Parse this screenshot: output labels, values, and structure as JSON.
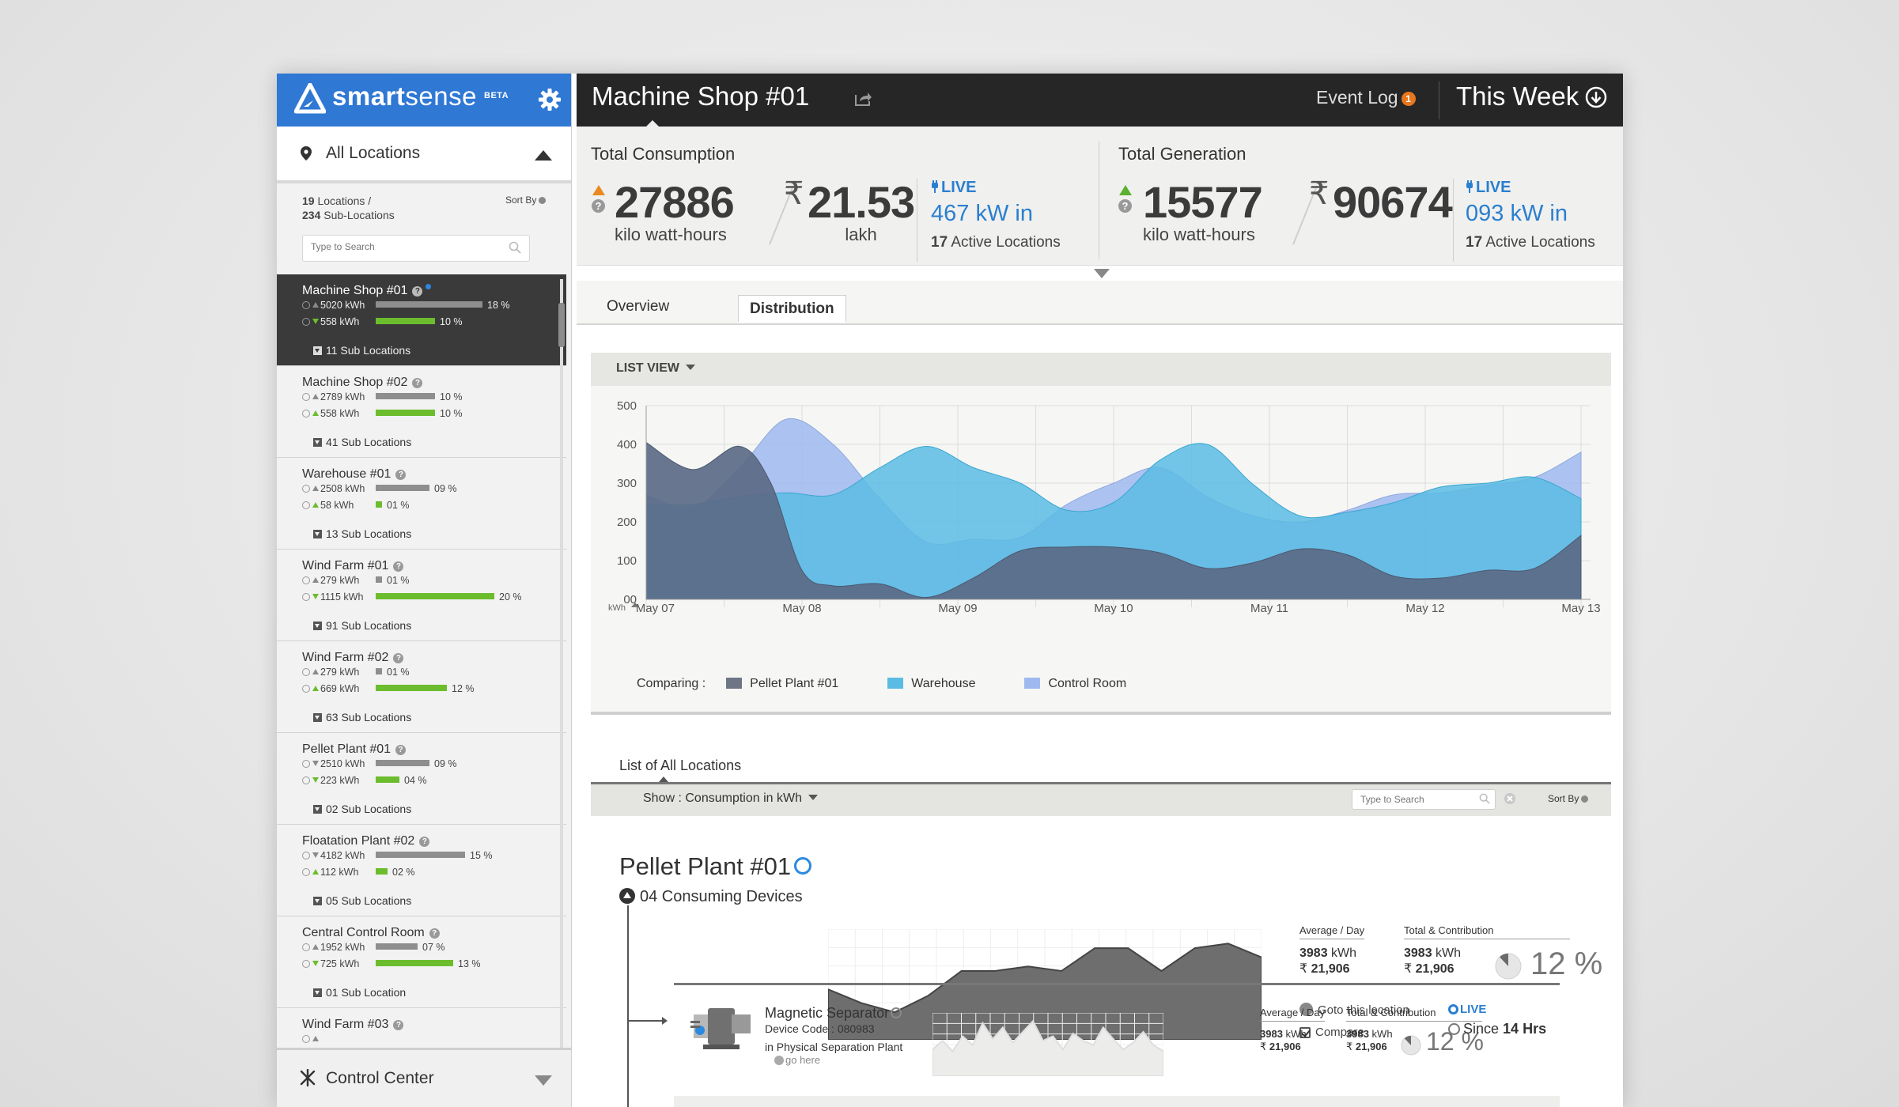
{
  "brand": {
    "name_bold": "smart",
    "name_light": "sense",
    "beta": "BETA"
  },
  "sidebar": {
    "locations_label": "All Locations",
    "locations_count": "19",
    "locations_text": "Locations /",
    "sublocations_count": "234",
    "sublocations_text": "Sub-Locations",
    "sort_by": "Sort By",
    "search_placeholder": "Type to Search",
    "items": [
      {
        "name": "Machine Shop #01",
        "active": true,
        "r1": {
          "kwh": "5020 kWh",
          "pct": "18 %",
          "bar": 0.9,
          "trend": "up-g"
        },
        "r2": {
          "kwh": "558 kWh",
          "pct": "10 %",
          "bar": 0.5,
          "trend": "dn-gr"
        },
        "sub": "11 Sub Locations"
      },
      {
        "name": "Machine Shop #02",
        "r1": {
          "kwh": "2789 kWh",
          "pct": "10 %",
          "bar": 0.5,
          "trend": "up-g"
        },
        "r2": {
          "kwh": "558 kWh",
          "pct": "10 %",
          "bar": 0.5,
          "trend": "up-gr"
        },
        "sub": "41 Sub Locations"
      },
      {
        "name": "Warehouse #01",
        "r1": {
          "kwh": "2508 kWh",
          "pct": "09 %",
          "bar": 0.45,
          "trend": "up-g"
        },
        "r2": {
          "kwh": "58 kWh",
          "pct": "01 %",
          "bar": 0.05,
          "trend": "up-gr"
        },
        "sub": "13 Sub Locations"
      },
      {
        "name": "Wind Farm #01",
        "r1": {
          "kwh": "279 kWh",
          "pct": "01 %",
          "bar": 0.05,
          "trend": "up-g"
        },
        "r2": {
          "kwh": "1115 kWh",
          "pct": "20 %",
          "bar": 1.0,
          "trend": "dn-gr"
        },
        "sub": "91 Sub Locations"
      },
      {
        "name": "Wind Farm #02",
        "r1": {
          "kwh": "279 kWh",
          "pct": "01 %",
          "bar": 0.05,
          "trend": "up-g"
        },
        "r2": {
          "kwh": "669 kWh",
          "pct": "12 %",
          "bar": 0.6,
          "trend": "up-gr"
        },
        "sub": "63 Sub Locations"
      },
      {
        "name": "Pellet Plant #01",
        "r1": {
          "kwh": "2510 kWh",
          "pct": "09 %",
          "bar": 0.45,
          "trend": "dn-g"
        },
        "r2": {
          "kwh": "223 kWh",
          "pct": "04 %",
          "bar": 0.2,
          "trend": "dn-gr"
        },
        "sub": "02 Sub Locations"
      },
      {
        "name": "Floatation Plant #02",
        "r1": {
          "kwh": "4182 kWh",
          "pct": "15 %",
          "bar": 0.75,
          "trend": "dn-g"
        },
        "r2": {
          "kwh": "112 kWh",
          "pct": "02 %",
          "bar": 0.1,
          "trend": "up-gr"
        },
        "sub": "05 Sub Locations"
      },
      {
        "name": "Central Control Room",
        "r1": {
          "kwh": "1952 kWh",
          "pct": "07 %",
          "bar": 0.35,
          "trend": "up-g"
        },
        "r2": {
          "kwh": "725 kWh",
          "pct": "13 %",
          "bar": 0.65,
          "trend": "dn-gr"
        },
        "sub": "01 Sub Location"
      },
      {
        "name": "Wind Farm #03",
        "r1": {
          "kwh": "",
          "pct": "",
          "bar": 0,
          "trend": "up-g"
        },
        "r2": {
          "kwh": "",
          "pct": "",
          "bar": 0,
          "trend": "up-gr"
        },
        "sub": ""
      }
    ],
    "control_center": "Control Center"
  },
  "topbar": {
    "title": "Machine Shop #01",
    "event_log": "Event Log",
    "event_badge": "1",
    "period": "This Week"
  },
  "consumption": {
    "title": "Total Consumption",
    "value": "27886",
    "unit": "kilo watt-hours",
    "cost": "21.53",
    "cost_unit": "lakh",
    "live": "LIVE",
    "live_kw": "467 kW in",
    "active_count": "17",
    "active_text": "Active Locations"
  },
  "generation": {
    "title": "Total Generation",
    "value": "15577",
    "unit": "kilo watt-hours",
    "cost": "90674",
    "live": "LIVE",
    "live_kw": "093 kW in",
    "active_count": "17",
    "active_text": "Active Locations"
  },
  "currency_symbol": "₹",
  "tabs": [
    {
      "label": "Overview"
    },
    {
      "label": "Distribution"
    }
  ],
  "chart_panel": {
    "list_view": "LIST VIEW",
    "comparing": "Comparing :"
  },
  "colors": {
    "pellet": "#5b6a86",
    "warehouse": "#5bbce3",
    "control": "#9fb9f0",
    "accent": "#2f78d4"
  },
  "chart_data": {
    "type": "area",
    "categories": [
      "May 07",
      "May 08",
      "May 09",
      "May 10",
      "May 11",
      "May 12",
      "May 13"
    ],
    "x_unit": "kWh",
    "ylim": [
      0,
      500
    ],
    "yticks": [
      0,
      100,
      200,
      300,
      400,
      500
    ],
    "ytick_labels": [
      "00",
      "100",
      "200",
      "300",
      "400",
      "500"
    ],
    "grid": true,
    "legend": "bottom-left",
    "series": [
      {
        "name": "Control Room",
        "color": "#9fb9f0",
        "values": [
          [
            0,
            270
          ],
          [
            0.3,
            235
          ],
          [
            0.6,
            340
          ],
          [
            0.9,
            465
          ],
          [
            1.2,
            400
          ],
          [
            1.5,
            260
          ],
          [
            1.8,
            148
          ],
          [
            2.1,
            155
          ],
          [
            2.4,
            160
          ],
          [
            2.7,
            245
          ],
          [
            3.0,
            300
          ],
          [
            3.3,
            340
          ],
          [
            3.6,
            265
          ],
          [
            3.9,
            215
          ],
          [
            4.2,
            200
          ],
          [
            4.5,
            230
          ],
          [
            4.8,
            270
          ],
          [
            5.1,
            275
          ],
          [
            5.4,
            295
          ],
          [
            5.7,
            315
          ],
          [
            6.0,
            380
          ]
        ]
      },
      {
        "name": "Warehouse",
        "color": "#5bbce3",
        "values": [
          [
            0,
            245
          ],
          [
            0.3,
            245
          ],
          [
            0.6,
            265
          ],
          [
            0.9,
            275
          ],
          [
            1.2,
            270
          ],
          [
            1.5,
            340
          ],
          [
            1.8,
            395
          ],
          [
            2.1,
            340
          ],
          [
            2.4,
            300
          ],
          [
            2.7,
            230
          ],
          [
            3.0,
            250
          ],
          [
            3.3,
            360
          ],
          [
            3.6,
            400
          ],
          [
            3.9,
            295
          ],
          [
            4.2,
            215
          ],
          [
            4.5,
            225
          ],
          [
            4.8,
            250
          ],
          [
            5.1,
            290
          ],
          [
            5.4,
            300
          ],
          [
            5.7,
            315
          ],
          [
            6.0,
            260
          ]
        ]
      },
      {
        "name": "Pellet Plant #01",
        "color": "#5b6a86",
        "values": [
          [
            0,
            405
          ],
          [
            0.3,
            335
          ],
          [
            0.6,
            395
          ],
          [
            0.8,
            300
          ],
          [
            1.0,
            75
          ],
          [
            1.2,
            35
          ],
          [
            1.5,
            40
          ],
          [
            1.8,
            5
          ],
          [
            2.1,
            55
          ],
          [
            2.4,
            125
          ],
          [
            2.7,
            135
          ],
          [
            3.0,
            135
          ],
          [
            3.3,
            120
          ],
          [
            3.6,
            80
          ],
          [
            3.9,
            95
          ],
          [
            4.2,
            130
          ],
          [
            4.5,
            115
          ],
          [
            4.8,
            60
          ],
          [
            5.1,
            55
          ],
          [
            5.4,
            75
          ],
          [
            5.7,
            80
          ],
          [
            6.0,
            165
          ]
        ]
      }
    ]
  },
  "list_section": {
    "title": "List of All Locations",
    "show": "Show :  Consumption in kWh",
    "search_placeholder": "Type to Search",
    "sort_by": "Sort By"
  },
  "pellet": {
    "title": "Pellet Plant #01",
    "devices": "04 Consuming Devices",
    "avg_label": "Average / Day",
    "avg_kwh": "3983",
    "avg_cost": "21,906",
    "total_label": "Total & Contribution",
    "total_kwh": "3983",
    "total_cost": "21,906",
    "contribution": "12 %",
    "contribution_frac": 0.12,
    "goto": "Goto this location",
    "compare": "Compare",
    "trend": [
      55,
      40,
      30,
      48,
      75,
      75,
      80,
      75,
      100,
      100,
      75,
      100,
      105,
      90
    ]
  },
  "separator": {
    "title": "Magnetic Separator",
    "code": "Device Code : 080983",
    "plant": "in Physical Separation Plant",
    "go": "go here",
    "avg_label": "Average / Day",
    "avg_kwh": "3983",
    "avg_cost": "21,906",
    "total_label": "Total & Contribution",
    "total_kwh": "3983",
    "total_cost": "21,906",
    "contribution": "12 %",
    "contribution_frac": 0.12,
    "live": "LIVE",
    "since_prefix": "Since",
    "since_value": "14 Hrs",
    "trend": [
      30,
      40,
      28,
      45,
      35,
      60,
      42,
      55,
      38,
      50,
      62,
      40,
      45,
      30,
      48,
      40,
      35,
      55,
      42,
      30,
      38,
      50,
      35,
      28
    ]
  },
  "units": {
    "kwh": "kWh"
  }
}
